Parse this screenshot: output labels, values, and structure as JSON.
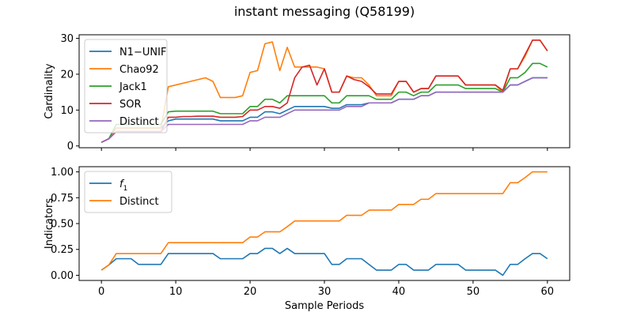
{
  "figure": {
    "title": "instant messaging (Q58199)"
  },
  "chart_data": [
    {
      "type": "line",
      "title": "",
      "xlabel": "",
      "ylabel": "Cardinality",
      "xlim": [
        -3,
        63
      ],
      "ylim": [
        -0.5,
        31
      ],
      "xticks": [
        0,
        10,
        20,
        30,
        40,
        50,
        60
      ],
      "yticks": [
        0,
        10,
        20,
        30
      ],
      "ytick_labels": [
        "0",
        "10",
        "20",
        "30"
      ],
      "xtick_labels": [],
      "grid": false,
      "legend_position": "upper-left",
      "x": [
        0,
        1,
        2,
        3,
        4,
        5,
        6,
        7,
        8,
        9,
        10,
        11,
        12,
        13,
        14,
        15,
        16,
        17,
        18,
        19,
        20,
        21,
        22,
        23,
        24,
        25,
        26,
        27,
        28,
        29,
        30,
        31,
        32,
        33,
        34,
        35,
        36,
        37,
        38,
        39,
        40,
        41,
        42,
        43,
        44,
        45,
        46,
        47,
        48,
        49,
        50,
        51,
        52,
        53,
        54,
        55,
        56,
        57,
        58,
        59,
        60
      ],
      "series": [
        {
          "name": "N1−UNIF",
          "color": "#1f77b4",
          "values": [
            1,
            2,
            5,
            5,
            5,
            5,
            5,
            5,
            5,
            7,
            7.5,
            7.5,
            7.5,
            7.5,
            7.5,
            7.5,
            7,
            7,
            7,
            7,
            8,
            8,
            9.5,
            9.5,
            9,
            10,
            11,
            11,
            11,
            11,
            11,
            10.5,
            10.5,
            11.5,
            11.5,
            11.5,
            12,
            12,
            12,
            12,
            13,
            13,
            13,
            14,
            14,
            15,
            15,
            15,
            15,
            15,
            15,
            15,
            15,
            15,
            15,
            17,
            17,
            18,
            19,
            19,
            19
          ]
        },
        {
          "name": "Chao92",
          "color": "#ff7f0e",
          "values": [
            1,
            2,
            5,
            5,
            5,
            5,
            5,
            5,
            5,
            16.5,
            17,
            17.5,
            18,
            18.5,
            19,
            18,
            13.5,
            13.5,
            13.5,
            14,
            20.5,
            21,
            28.5,
            29,
            21,
            27.5,
            22,
            22,
            22,
            22,
            21.5,
            15,
            15,
            19.5,
            19,
            19,
            17,
            14,
            14,
            14,
            18,
            18,
            15,
            16,
            16,
            19.5,
            19.5,
            19.5,
            19.5,
            17,
            17,
            17,
            17,
            17,
            15,
            21.5,
            21.5,
            25,
            29.5,
            29.5,
            26.5
          ]
        },
        {
          "name": "Jack1",
          "color": "#2ca02c",
          "values": [
            1,
            2,
            6,
            6,
            6,
            6,
            6,
            6,
            6,
            9.5,
            9.7,
            9.7,
            9.7,
            9.7,
            9.7,
            9.7,
            9,
            9,
            9,
            9,
            11,
            11,
            13,
            13,
            12,
            14,
            14,
            14,
            14,
            14,
            14,
            12,
            12,
            14,
            14,
            14,
            14,
            13,
            13,
            13,
            15,
            15,
            14,
            15,
            15,
            17,
            17,
            17,
            17,
            16,
            16,
            16,
            16,
            16,
            15,
            19,
            19,
            20.5,
            23,
            23,
            22
          ]
        },
        {
          "name": "SOR",
          "color": "#d62728",
          "values": [
            1,
            2,
            4,
            4,
            4,
            4,
            4,
            4,
            4,
            8,
            8,
            8.2,
            8.2,
            8.3,
            8.3,
            8.3,
            8,
            8,
            8,
            8.2,
            10,
            10,
            11,
            11,
            10.5,
            12,
            19,
            22,
            22.5,
            17,
            21.5,
            15,
            15,
            19.5,
            18.5,
            18,
            16.5,
            14.5,
            14.5,
            14.5,
            18,
            18,
            15,
            16,
            16,
            19.5,
            19.5,
            19.5,
            19.5,
            17,
            17,
            17,
            17,
            17,
            15.5,
            21.5,
            21.5,
            25.5,
            29.5,
            29.5,
            26.5
          ]
        },
        {
          "name": "Distinct",
          "color": "#9467bd",
          "values": [
            1,
            2,
            4,
            4,
            4,
            4,
            4,
            4,
            4,
            6,
            6,
            6,
            6,
            6,
            6,
            6,
            6,
            6,
            6,
            6,
            7,
            7,
            8,
            8,
            8,
            9,
            10,
            10,
            10,
            10,
            10,
            10,
            10,
            11,
            11,
            11,
            12,
            12,
            12,
            12,
            13,
            13,
            13,
            14,
            14,
            15,
            15,
            15,
            15,
            15,
            15,
            15,
            15,
            15,
            15,
            17,
            17,
            18,
            19,
            19,
            19
          ]
        }
      ]
    },
    {
      "type": "line",
      "title": "",
      "xlabel": "Sample Periods",
      "ylabel": "Indicators",
      "xlim": [
        -3,
        63
      ],
      "ylim": [
        -0.05,
        1.05
      ],
      "xticks": [
        0,
        10,
        20,
        30,
        40,
        50,
        60
      ],
      "xtick_labels": [
        "0",
        "10",
        "20",
        "30",
        "40",
        "50",
        "60"
      ],
      "yticks": [
        0,
        0.25,
        0.5,
        0.75,
        1.0
      ],
      "ytick_labels": [
        "0.00",
        "0.25",
        "0.50",
        "0.75",
        "1.00"
      ],
      "grid": false,
      "legend_position": "upper-left",
      "x": [
        0,
        1,
        2,
        3,
        4,
        5,
        6,
        7,
        8,
        9,
        10,
        11,
        12,
        13,
        14,
        15,
        16,
        17,
        18,
        19,
        20,
        21,
        22,
        23,
        24,
        25,
        26,
        27,
        28,
        29,
        30,
        31,
        32,
        33,
        34,
        35,
        36,
        37,
        38,
        39,
        40,
        41,
        42,
        43,
        44,
        45,
        46,
        47,
        48,
        49,
        50,
        51,
        52,
        53,
        54,
        55,
        56,
        57,
        58,
        59,
        60
      ],
      "series": [
        {
          "name": "f1",
          "name_main": "f",
          "name_sub": "1",
          "color": "#1f77b4",
          "values": [
            0.05,
            0.1,
            0.16,
            0.16,
            0.16,
            0.105,
            0.105,
            0.105,
            0.105,
            0.21,
            0.21,
            0.21,
            0.21,
            0.21,
            0.21,
            0.21,
            0.16,
            0.16,
            0.16,
            0.16,
            0.21,
            0.21,
            0.26,
            0.26,
            0.21,
            0.26,
            0.21,
            0.21,
            0.21,
            0.21,
            0.21,
            0.105,
            0.105,
            0.16,
            0.16,
            0.16,
            0.105,
            0.05,
            0.05,
            0.05,
            0.105,
            0.105,
            0.05,
            0.05,
            0.05,
            0.105,
            0.105,
            0.105,
            0.105,
            0.05,
            0.05,
            0.05,
            0.05,
            0.05,
            0.0,
            0.105,
            0.105,
            0.16,
            0.21,
            0.21,
            0.16
          ]
        },
        {
          "name": "Distinct",
          "color": "#ff7f0e",
          "values": [
            0.05,
            0.1,
            0.21,
            0.21,
            0.21,
            0.21,
            0.21,
            0.21,
            0.21,
            0.315,
            0.315,
            0.315,
            0.315,
            0.315,
            0.315,
            0.315,
            0.315,
            0.315,
            0.315,
            0.315,
            0.37,
            0.37,
            0.42,
            0.42,
            0.42,
            0.47,
            0.525,
            0.525,
            0.525,
            0.525,
            0.525,
            0.525,
            0.525,
            0.58,
            0.58,
            0.58,
            0.63,
            0.63,
            0.63,
            0.63,
            0.685,
            0.685,
            0.685,
            0.735,
            0.735,
            0.79,
            0.79,
            0.79,
            0.79,
            0.79,
            0.79,
            0.79,
            0.79,
            0.79,
            0.79,
            0.895,
            0.895,
            0.945,
            1.0,
            1.0,
            1.0
          ]
        }
      ]
    }
  ]
}
